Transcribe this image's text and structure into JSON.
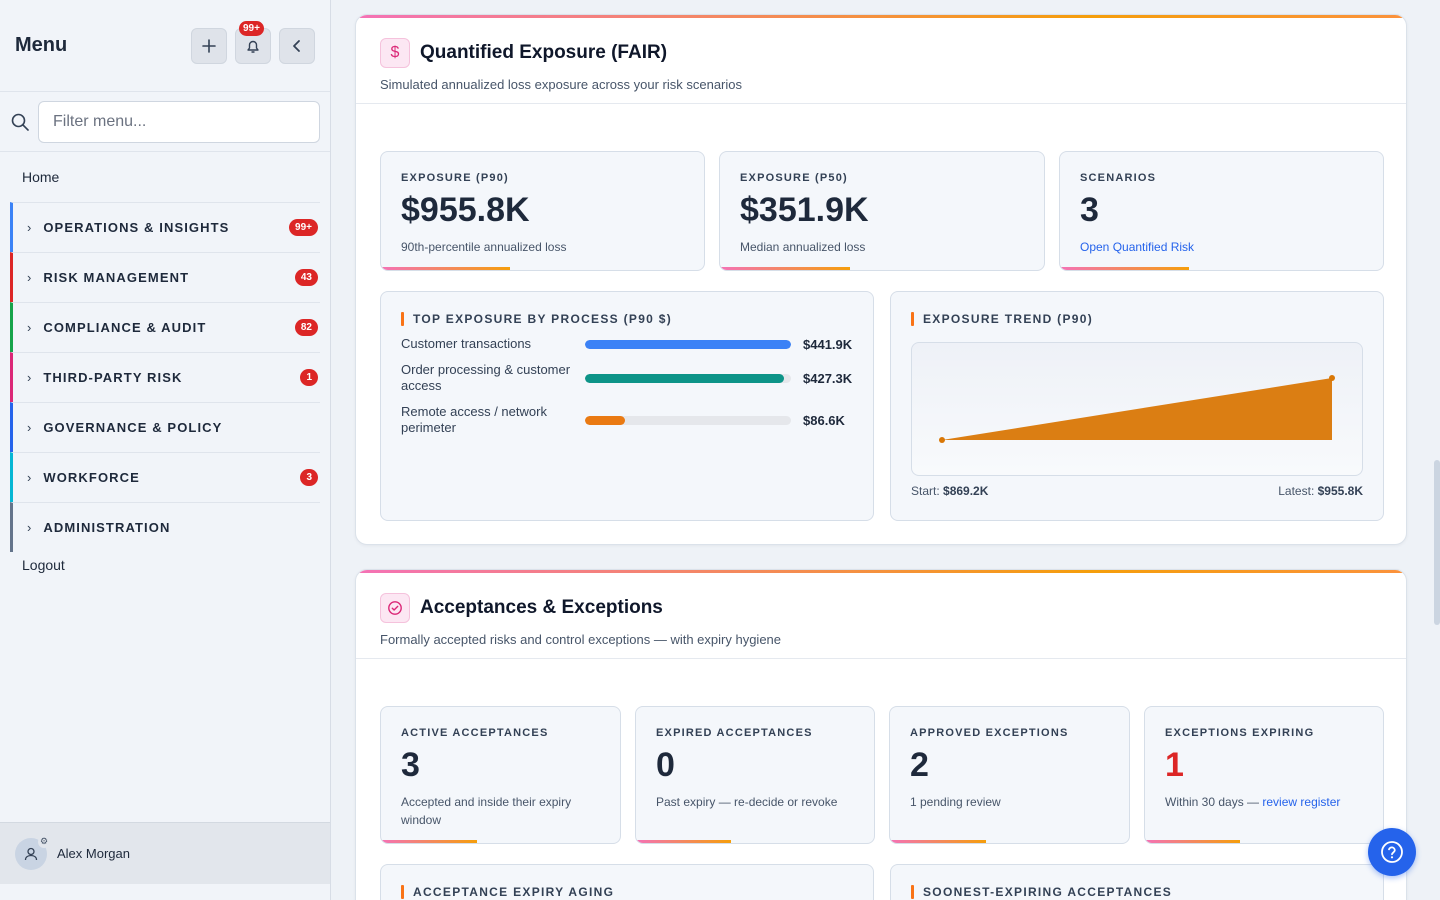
{
  "sidebar": {
    "title": "Menu",
    "notifications_badge": "99+",
    "filter_placeholder": "Filter menu...",
    "home": "Home",
    "groups": [
      {
        "label": "OPERATIONS & INSIGHTS",
        "badge": "99+",
        "color": "#3b82f6"
      },
      {
        "label": "RISK MANAGEMENT",
        "badge": "43",
        "color": "#dc2626"
      },
      {
        "label": "COMPLIANCE & AUDIT",
        "badge": "82",
        "color": "#16a34a"
      },
      {
        "label": "THIRD-PARTY RISK",
        "badge": "1",
        "color": "#db2777"
      },
      {
        "label": "GOVERNANCE & POLICY",
        "badge": "",
        "color": "#2563eb"
      },
      {
        "label": "WORKFORCE",
        "badge": "3",
        "color": "#06b6d4"
      },
      {
        "label": "ADMINISTRATION",
        "badge": "",
        "color": "#64748b"
      }
    ],
    "logout": "Logout",
    "user_name": "Alex Morgan"
  },
  "fair": {
    "title": "Quantified Exposure (FAIR)",
    "subtitle": "Simulated annualized loss exposure across your risk scenarios",
    "stats": [
      {
        "label": "EXPOSURE (P90)",
        "value": "$955.8K",
        "note": "90th-percentile annualized loss"
      },
      {
        "label": "EXPOSURE (P50)",
        "value": "$351.9K",
        "note": "Median annualized loss"
      },
      {
        "label": "SCENARIOS",
        "value": "3",
        "note": "Open Quantified Risk"
      }
    ],
    "process_title": "TOP EXPOSURE BY PROCESS (P90 $)",
    "processes": [
      {
        "label": "Customer transactions",
        "value": "$441.9K",
        "amount": 441.9,
        "color": "#3b82f6"
      },
      {
        "label": "Order processing & customer access",
        "value": "$427.3K",
        "amount": 427.3,
        "color": "#0d9488"
      },
      {
        "label": "Remote access / network perimeter",
        "value": "$86.6K",
        "amount": 86.6,
        "color": "#ea7a12"
      }
    ],
    "trend_title": "EXPOSURE TREND (P90)",
    "trend_start_label": "Start:",
    "trend_start": "$869.2K",
    "trend_latest_label": "Latest:",
    "trend_latest": "$955.8K",
    "trend_color": "#d97706"
  },
  "acceptances": {
    "title": "Acceptances & Exceptions",
    "subtitle": "Formally accepted risks and control exceptions — with expiry hygiene",
    "stats": [
      {
        "label": "ACTIVE ACCEPTANCES",
        "value": "3",
        "note": "Accepted and inside their expiry window"
      },
      {
        "label": "EXPIRED ACCEPTANCES",
        "value": "0",
        "note": "Past expiry — re-decide or revoke"
      },
      {
        "label": "APPROVED EXCEPTIONS",
        "value": "2",
        "note": "1 pending review"
      },
      {
        "label": "EXCEPTIONS EXPIRING",
        "value": "1",
        "note": "Within 30 days —",
        "link": "review register"
      }
    ],
    "aging_title": "ACCEPTANCE EXPIRY AGING",
    "soonest_title": "SOONEST-EXPIRING ACCEPTANCES"
  }
}
